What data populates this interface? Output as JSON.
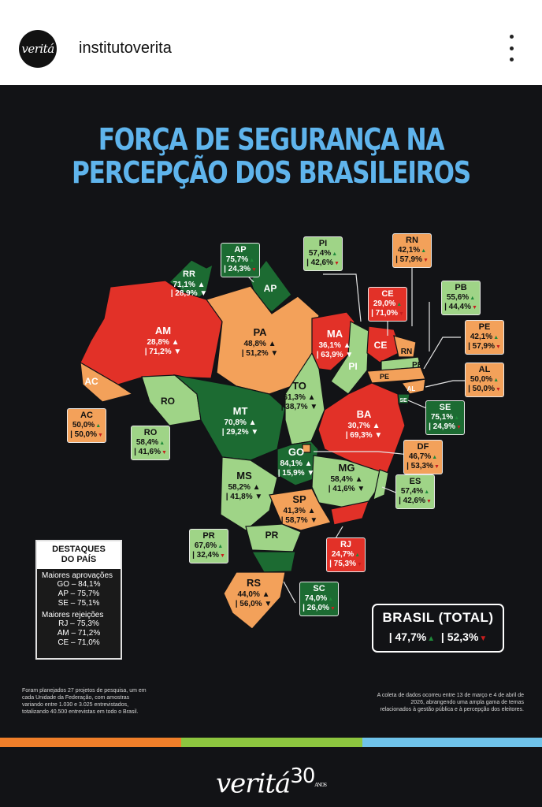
{
  "header": {
    "avatar_text": "veritá",
    "username": "institutoverita",
    "menu_icon": "more-vertical-icon"
  },
  "poster": {
    "title_line1": "FORÇA DE SEGURANÇA NA",
    "title_line2": "PERCEPÇÃO DOS BRASILEIROS"
  },
  "colors": {
    "red": "#e23128",
    "orange": "#f3a15a",
    "light_green": "#9fd487",
    "dark_green": "#1c6b32",
    "title": "#5fb4ec",
    "approve": "#1f8a3a",
    "reject": "#c81e1e",
    "background": "#121316"
  },
  "legend_icons": {
    "approve": "thumbs-up-icon",
    "reject": "thumbs-down-icon"
  },
  "states": [
    {
      "code": "RR",
      "approve": "71,1%",
      "reject": "28,9%",
      "color": "dark_green"
    },
    {
      "code": "AP",
      "approve": "75,7%",
      "reject": "24,3%",
      "color": "dark_green"
    },
    {
      "code": "AM",
      "approve": "28,8%",
      "reject": "71,2%",
      "color": "red"
    },
    {
      "code": "PA",
      "approve": "48,8%",
      "reject": "51,2%",
      "color": "orange"
    },
    {
      "code": "AC",
      "approve": "50,0%",
      "reject": "50,0%",
      "color": "orange"
    },
    {
      "code": "RO",
      "approve": "58,4%",
      "reject": "41,6%",
      "color": "light_green"
    },
    {
      "code": "MT",
      "approve": "70,8%",
      "reject": "29,2%",
      "color": "dark_green"
    },
    {
      "code": "TO",
      "approve": "61,3%",
      "reject": "38,7%",
      "color": "light_green"
    },
    {
      "code": "MA",
      "approve": "36,1%",
      "reject": "63,9%",
      "color": "red"
    },
    {
      "code": "PI",
      "approve": "57,4%",
      "reject": "42,6%",
      "color": "light_green"
    },
    {
      "code": "CE",
      "approve": "29,0%",
      "reject": "71,0%",
      "color": "red"
    },
    {
      "code": "RN",
      "approve": "42,1%",
      "reject": "57,9%",
      "color": "orange"
    },
    {
      "code": "PB",
      "approve": "55,6%",
      "reject": "44,4%",
      "color": "light_green"
    },
    {
      "code": "PE",
      "approve": "42,1%",
      "reject": "57,9%",
      "color": "orange"
    },
    {
      "code": "AL",
      "approve": "50,0%",
      "reject": "50,0%",
      "color": "orange"
    },
    {
      "code": "SE",
      "approve": "75,1%",
      "reject": "24,9%",
      "color": "dark_green"
    },
    {
      "code": "BA",
      "approve": "30,7%",
      "reject": "69,3%",
      "color": "red"
    },
    {
      "code": "GO",
      "approve": "84,1%",
      "reject": "15,9%",
      "color": "dark_green"
    },
    {
      "code": "DF",
      "approve": "46,7%",
      "reject": "53,3%",
      "color": "orange"
    },
    {
      "code": "MG",
      "approve": "58,4%",
      "reject": "41,6%",
      "color": "light_green"
    },
    {
      "code": "ES",
      "approve": "57,4%",
      "reject": "42,6%",
      "color": "light_green"
    },
    {
      "code": "MS",
      "approve": "58,2%",
      "reject": "41,8%",
      "color": "light_green"
    },
    {
      "code": "SP",
      "approve": "41,3%",
      "reject": "58,7%",
      "color": "orange"
    },
    {
      "code": "RJ",
      "approve": "24,7%",
      "reject": "75,3%",
      "color": "red"
    },
    {
      "code": "PR",
      "approve": "67,6%",
      "reject": "32,4%",
      "color": "light_green"
    },
    {
      "code": "SC",
      "approve": "74,0%",
      "reject": "26,0%",
      "color": "dark_green"
    },
    {
      "code": "RS",
      "approve": "44,0%",
      "reject": "56,0%",
      "color": "orange"
    }
  ],
  "highlights": {
    "title_line1": "DESTAQUES",
    "title_line2": "DO PAÍS",
    "approvals_label": "Maiores aprovações",
    "approvals": [
      "GO – 84,1%",
      "AP – 75,7%",
      "SE – 75,1%"
    ],
    "rejections_label": "Maiores rejeições",
    "rejections": [
      "RJ – 75,3%",
      "AM – 71,2%",
      "CE – 71,0%"
    ]
  },
  "total": {
    "title": "BRASIL (TOTAL)",
    "approve": "47,7%",
    "reject": "52,3%"
  },
  "notes": {
    "left": [
      "Foram planejados 27 projetos de pesquisa, um em",
      "cada Unidade da Federação, com amostras",
      "variando entre 1.030 e 3.025 entrevistados,",
      "totalizando 40.500 entrevistas em todo o Brasil."
    ],
    "right": [
      "A coleta de dados ocorreu entre 13 de março e 4 de abril de",
      "2026, abrangendo uma ampla gama de temas",
      "relacionados à gestão pública e à percepção dos eleitores."
    ]
  },
  "footer": {
    "logo": "veritá",
    "logo_number": "30",
    "logo_suffix": "ANOS",
    "stripe_colors": [
      "#f07f2a",
      "#8dc63f",
      "#6fc3ea"
    ]
  }
}
